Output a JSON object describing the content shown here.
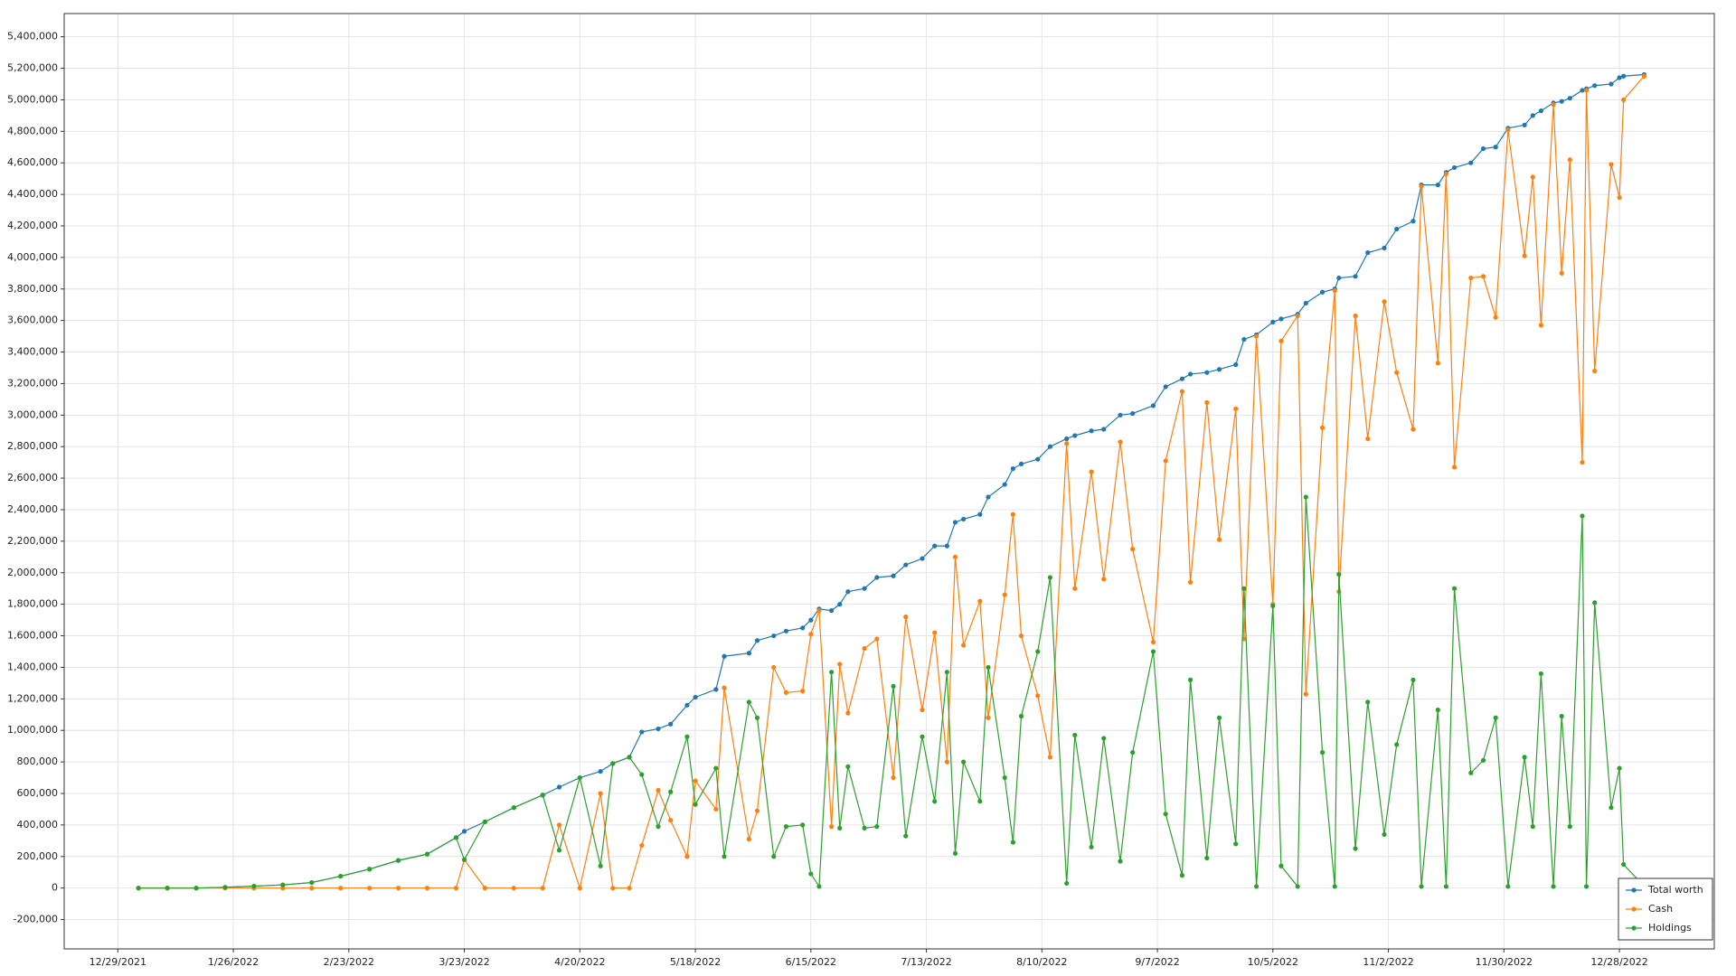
{
  "chart_data": {
    "type": "line",
    "x": [
      "1/3/2022",
      "1/10/2022",
      "1/17/2022",
      "1/24/2022",
      "1/31/2022",
      "2/7/2022",
      "2/14/2022",
      "2/21/2022",
      "2/28/2022",
      "3/7/2022",
      "3/14/2022",
      "3/21/2022",
      "3/23/2022",
      "3/28/2022",
      "4/4/2022",
      "4/11/2022",
      "4/15/2022",
      "4/20/2022",
      "4/25/2022",
      "4/28/2022",
      "5/2/2022",
      "5/5/2022",
      "5/9/2022",
      "5/12/2022",
      "5/16/2022",
      "5/18/2022",
      "5/23/2022",
      "5/25/2022",
      "5/31/2022",
      "6/2/2022",
      "6/6/2022",
      "6/9/2022",
      "6/13/2022",
      "6/15/2022",
      "6/17/2022",
      "6/20/2022",
      "6/22/2022",
      "6/24/2022",
      "6/28/2022",
      "7/1/2022",
      "7/5/2022",
      "7/8/2022",
      "7/12/2022",
      "7/15/2022",
      "7/18/2022",
      "7/20/2022",
      "7/22/2022",
      "7/26/2022",
      "7/28/2022",
      "8/1/2022",
      "8/3/2022",
      "8/5/2022",
      "8/9/2022",
      "8/12/2022",
      "8/16/2022",
      "8/18/2022",
      "8/22/2022",
      "8/25/2022",
      "8/29/2022",
      "9/1/2022",
      "9/6/2022",
      "9/9/2022",
      "9/13/2022",
      "9/15/2022",
      "9/19/2022",
      "9/22/2022",
      "9/26/2022",
      "9/28/2022",
      "10/1/2022",
      "10/5/2022",
      "10/7/2022",
      "10/11/2022",
      "10/13/2022",
      "10/17/2022",
      "10/20/2022",
      "10/21/2022",
      "10/25/2022",
      "10/28/2022",
      "11/1/2022",
      "11/4/2022",
      "11/8/2022",
      "11/10/2022",
      "11/14/2022",
      "11/16/2022",
      "11/18/2022",
      "11/22/2022",
      "11/25/2022",
      "11/28/2022",
      "12/1/2022",
      "12/5/2022",
      "12/7/2022",
      "12/9/2022",
      "12/12/2022",
      "12/14/2022",
      "12/16/2022",
      "12/19/2022",
      "12/20/2022",
      "12/22/2022",
      "12/26/2022",
      "12/28/2022",
      "12/29/2022",
      "1/3/2023"
    ],
    "series": [
      {
        "name": "Total worth",
        "color": "#1f77b4",
        "values": [
          0,
          0,
          0,
          5000,
          12000,
          20000,
          35000,
          75000,
          120000,
          175000,
          215000,
          320000,
          360000,
          420000,
          510000,
          590000,
          640000,
          700000,
          740000,
          790000,
          830000,
          990000,
          1010000,
          1040000,
          1160000,
          1210000,
          1260000,
          1470000,
          1490000,
          1570000,
          1600000,
          1630000,
          1650000,
          1700000,
          1770000,
          1760000,
          1800000,
          1880000,
          1900000,
          1970000,
          1980000,
          2050000,
          2090000,
          2170000,
          2170000,
          2320000,
          2340000,
          2370000,
          2480000,
          2560000,
          2660000,
          2690000,
          2720000,
          2800000,
          2850000,
          2870000,
          2900000,
          2910000,
          3000000,
          3010000,
          3060000,
          3180000,
          3230000,
          3260000,
          3270000,
          3290000,
          3320000,
          3480000,
          3510000,
          3590000,
          3610000,
          3640000,
          3710000,
          3780000,
          3800000,
          3870000,
          3880000,
          4030000,
          4060000,
          4180000,
          4230000,
          4460000,
          4460000,
          4540000,
          4570000,
          4600000,
          4690000,
          4700000,
          4820000,
          4840000,
          4900000,
          4930000,
          4980000,
          4990000,
          5010000,
          5060000,
          5070000,
          5090000,
          5100000,
          5140000,
          5150000,
          5160000
        ]
      },
      {
        "name": "Cash",
        "color": "#ff7f0e",
        "values": [
          0,
          0,
          0,
          0,
          0,
          0,
          0,
          0,
          0,
          0,
          0,
          0,
          180000,
          0,
          0,
          0,
          400000,
          0,
          600000,
          0,
          0,
          270000,
          620000,
          430000,
          200000,
          680000,
          500000,
          1270000,
          310000,
          490000,
          1400000,
          1240000,
          1250000,
          1610000,
          1760000,
          390000,
          1420000,
          1110000,
          1520000,
          1580000,
          700000,
          1720000,
          1130000,
          1620000,
          800000,
          2100000,
          1540000,
          1820000,
          1080000,
          1860000,
          2370000,
          1600000,
          1220000,
          830000,
          2820000,
          1900000,
          2640000,
          1960000,
          2830000,
          2150000,
          1560000,
          2710000,
          3150000,
          1940000,
          3080000,
          2210000,
          3040000,
          1580000,
          3500000,
          1800000,
          3470000,
          3630000,
          1230000,
          2920000,
          3790000,
          1880000,
          3630000,
          2850000,
          3720000,
          3270000,
          2910000,
          4450000,
          3330000,
          4530000,
          2670000,
          3870000,
          3880000,
          3620000,
          4810000,
          4010000,
          4510000,
          3570000,
          4970000,
          3900000,
          4620000,
          2700000,
          5060000,
          3280000,
          4590000,
          4380000,
          5000000,
          5150000
        ]
      },
      {
        "name": "Holdings",
        "color": "#2ca02c",
        "values": [
          0,
          0,
          0,
          5000,
          12000,
          20000,
          35000,
          75000,
          120000,
          175000,
          215000,
          320000,
          180000,
          420000,
          510000,
          590000,
          240000,
          700000,
          140000,
          790000,
          830000,
          720000,
          390000,
          610000,
          960000,
          530000,
          760000,
          200000,
          1180000,
          1080000,
          200000,
          390000,
          400000,
          90000,
          10000,
          1370000,
          380000,
          770000,
          380000,
          390000,
          1280000,
          330000,
          960000,
          550000,
          1370000,
          220000,
          800000,
          550000,
          1400000,
          700000,
          290000,
          1090000,
          1500000,
          1970000,
          30000,
          970000,
          260000,
          950000,
          170000,
          860000,
          1500000,
          470000,
          80000,
          1320000,
          190000,
          1080000,
          280000,
          1900000,
          10000,
          1790000,
          140000,
          10000,
          2480000,
          860000,
          10000,
          1990000,
          250000,
          1180000,
          340000,
          910000,
          1320000,
          10000,
          1130000,
          10000,
          1900000,
          730000,
          810000,
          1080000,
          10000,
          830000,
          390000,
          1360000,
          10000,
          1090000,
          390000,
          2360000,
          10000,
          1810000,
          510000,
          760000,
          150000,
          10000
        ]
      }
    ],
    "xlim": [
      "12/16/2021",
      "1/20/2023"
    ],
    "xticks": [
      "12/29/2021",
      "1/26/2022",
      "2/23/2022",
      "3/23/2022",
      "4/20/2022",
      "5/18/2022",
      "6/15/2022",
      "7/13/2022",
      "8/10/2022",
      "9/7/2022",
      "10/5/2022",
      "11/2/2022",
      "11/30/2022",
      "12/28/2022"
    ],
    "ylim": [
      -386000,
      5547000
    ],
    "yticks": [
      {
        "value": -200000,
        "label": "-200,000"
      },
      {
        "value": 0,
        "label": "0"
      },
      {
        "value": 200000,
        "label": "200,000"
      },
      {
        "value": 400000,
        "label": "400,000"
      },
      {
        "value": 600000,
        "label": "600,000"
      },
      {
        "value": 800000,
        "label": "800,000"
      },
      {
        "value": 1000000,
        "label": "1,000,000"
      },
      {
        "value": 1200000,
        "label": "1,200,000"
      },
      {
        "value": 1400000,
        "label": "1,400,000"
      },
      {
        "value": 1600000,
        "label": "1,600,000"
      },
      {
        "value": 1800000,
        "label": "1,800,000"
      },
      {
        "value": 2000000,
        "label": "2,000,000"
      },
      {
        "value": 2200000,
        "label": "2,200,000"
      },
      {
        "value": 2400000,
        "label": "2,400,000"
      },
      {
        "value": 2600000,
        "label": "2,600,000"
      },
      {
        "value": 2800000,
        "label": "2,800,000"
      },
      {
        "value": 3000000,
        "label": "3,000,000"
      },
      {
        "value": 3200000,
        "label": "3,200,000"
      },
      {
        "value": 3400000,
        "label": "3,400,000"
      },
      {
        "value": 3600000,
        "label": "3,600,000"
      },
      {
        "value": 3800000,
        "label": "3,800,000"
      },
      {
        "value": 4000000,
        "label": "4,000,000"
      },
      {
        "value": 4200000,
        "label": "4,200,000"
      },
      {
        "value": 4400000,
        "label": "4,400,000"
      },
      {
        "value": 4600000,
        "label": "4,600,000"
      },
      {
        "value": 4800000,
        "label": "4,800,000"
      },
      {
        "value": 5000000,
        "label": "5,000,000"
      },
      {
        "value": 5200000,
        "label": "5,200,000"
      },
      {
        "value": 5400000,
        "label": "5,400,000"
      }
    ],
    "grid": true,
    "legend": "lower right"
  }
}
